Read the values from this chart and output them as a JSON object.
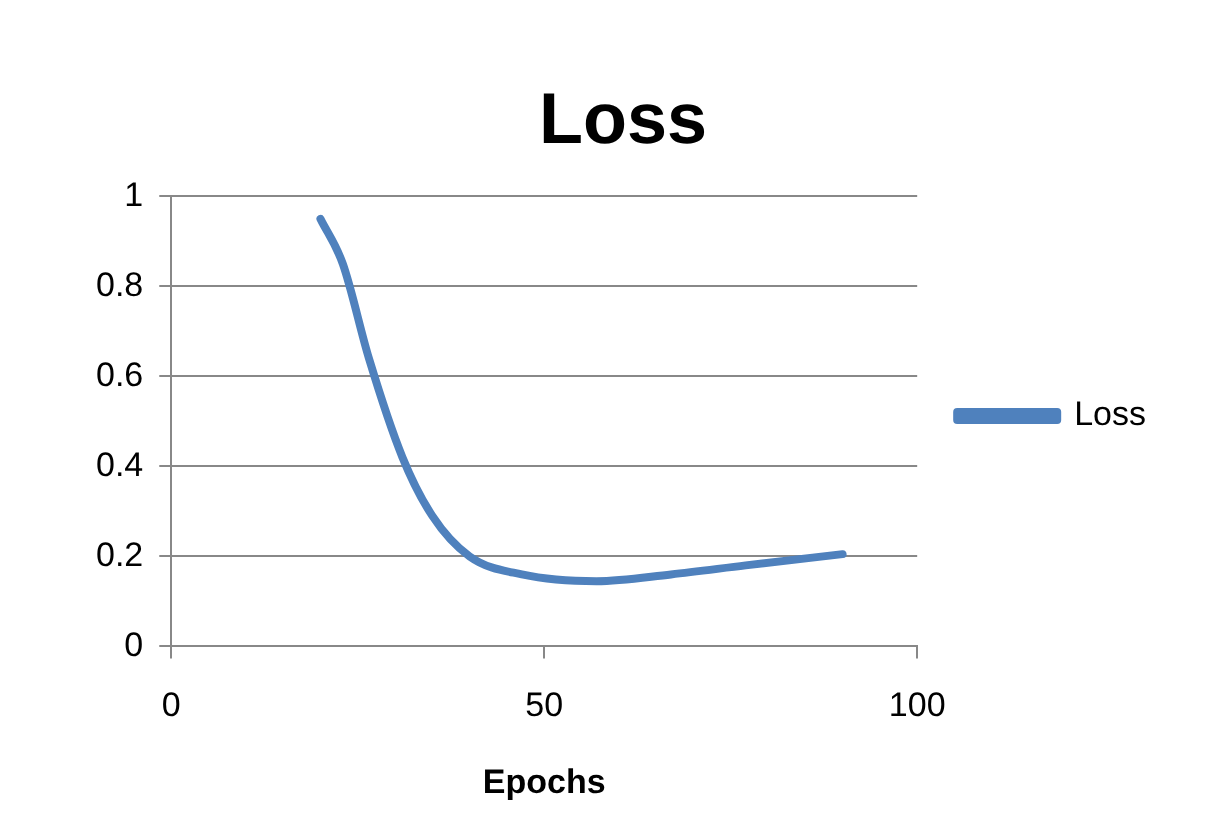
{
  "chart_data": {
    "type": "line",
    "title": "Loss",
    "xlabel": "Epochs",
    "x": [
      20,
      23,
      26.5,
      31,
      35,
      40,
      47,
      57,
      67,
      77,
      90
    ],
    "series": [
      {
        "name": "Loss",
        "color": "#4f81bd",
        "values": [
          0.95,
          0.85,
          0.64,
          0.42,
          0.29,
          0.2,
          0.16,
          0.145,
          0.16,
          0.18,
          0.205
        ]
      }
    ],
    "xlim": [
      0,
      100
    ],
    "xticks": [
      0,
      50,
      100
    ],
    "ylim": [
      0,
      1
    ],
    "yticks": [
      0,
      0.2,
      0.4,
      0.6,
      0.8,
      1
    ],
    "grid": "y",
    "legend": "right",
    "marker": "none",
    "line_style": "solid"
  }
}
